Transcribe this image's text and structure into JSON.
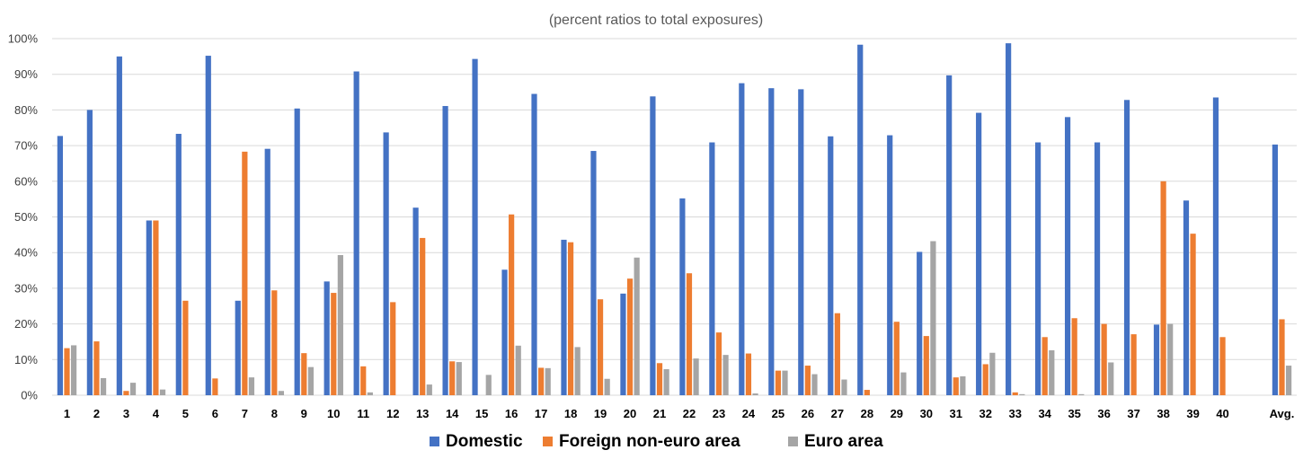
{
  "chart_data": {
    "type": "bar",
    "title": "",
    "subtitle": "(percent ratios to total exposures)",
    "xlabel": "",
    "ylabel": "",
    "ylim": [
      0,
      100
    ],
    "yticks": [
      "0%",
      "10%",
      "20%",
      "30%",
      "40%",
      "50%",
      "60%",
      "70%",
      "80%",
      "90%",
      "100%"
    ],
    "grid": true,
    "legend_position": "bottom",
    "categories": [
      "1",
      "2",
      "3",
      "4",
      "5",
      "6",
      "7",
      "8",
      "9",
      "10",
      "11",
      "12",
      "13",
      "14",
      "15",
      "16",
      "17",
      "18",
      "19",
      "20",
      "21",
      "22",
      "23",
      "24",
      "25",
      "26",
      "27",
      "28",
      "29",
      "30",
      "31",
      "32",
      "33",
      "34",
      "35",
      "36",
      "37",
      "38",
      "39",
      "40",
      "",
      "Avg."
    ],
    "series": [
      {
        "name": "Domestic",
        "color": "#4472c4",
        "values": [
          72.7,
          80.0,
          95.0,
          49.0,
          73.3,
          95.2,
          26.5,
          69.1,
          80.4,
          31.9,
          90.8,
          73.7,
          52.6,
          81.1,
          94.3,
          35.2,
          84.5,
          43.6,
          68.5,
          28.5,
          83.8,
          55.2,
          70.9,
          87.5,
          86.1,
          85.8,
          72.6,
          98.3,
          72.9,
          40.2,
          89.7,
          79.2,
          98.7,
          70.9,
          78.0,
          70.9,
          82.8,
          19.8,
          54.6,
          83.5,
          null,
          70.3
        ]
      },
      {
        "name": "Foreign non-euro area",
        "color": "#ed7d31",
        "values": [
          13.2,
          15.1,
          1.2,
          49.0,
          26.5,
          4.7,
          68.3,
          29.4,
          11.8,
          28.7,
          8.1,
          26.1,
          44.1,
          9.5,
          0,
          50.7,
          7.7,
          42.9,
          26.9,
          32.7,
          9.0,
          34.2,
          17.6,
          11.7,
          6.9,
          8.3,
          23.0,
          1.5,
          20.6,
          16.6,
          5.0,
          8.7,
          0.8,
          16.3,
          21.6,
          20.0,
          17.1,
          60.0,
          45.3,
          16.3,
          null,
          21.3
        ]
      },
      {
        "name": "Euro area",
        "color": "#a5a5a5",
        "values": [
          14.0,
          4.8,
          3.5,
          1.6,
          0,
          0,
          5.0,
          1.2,
          7.9,
          39.3,
          0.8,
          0,
          3.0,
          9.3,
          5.7,
          13.9,
          7.6,
          13.5,
          4.6,
          38.6,
          7.3,
          10.3,
          11.3,
          0.5,
          6.9,
          5.9,
          4.4,
          0,
          6.4,
          43.2,
          5.3,
          11.9,
          0.3,
          12.6,
          0.3,
          9.2,
          0,
          20.0,
          0,
          0,
          null,
          8.3
        ]
      }
    ]
  }
}
